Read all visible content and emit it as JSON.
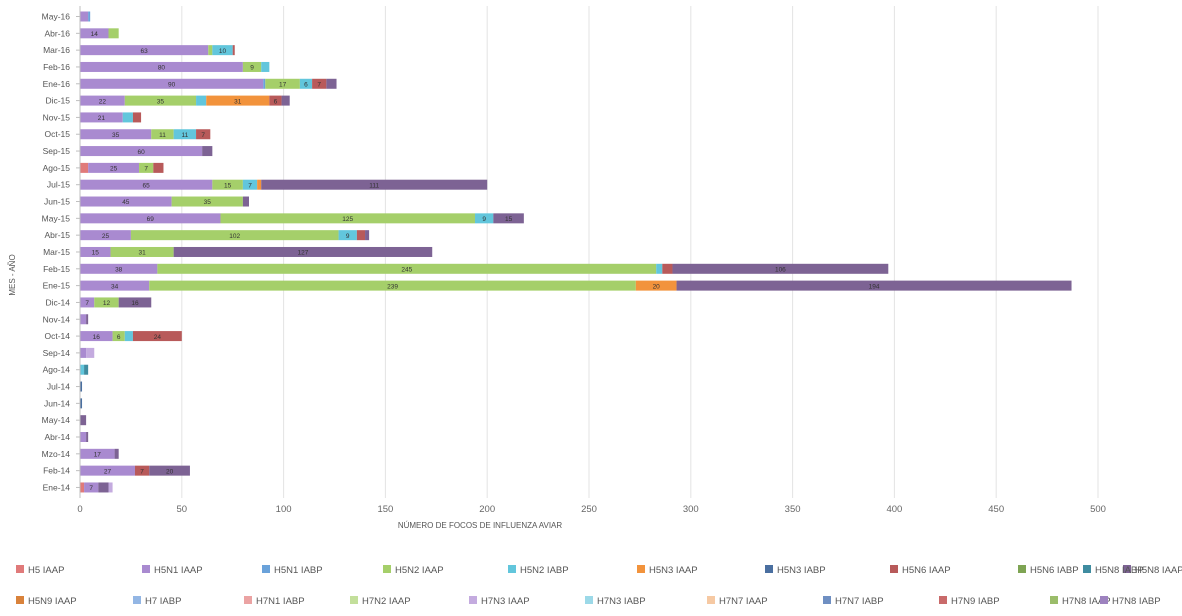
{
  "chart_data": {
    "type": "bar",
    "orientation": "horizontal",
    "stacked": true,
    "xlabel": "NÚMERO DE FOCOS DE INFLUENZA AVIAR",
    "ylabel": "MES - AÑO",
    "xlim": [
      0,
      500
    ],
    "xticks": [
      0,
      50,
      100,
      150,
      200,
      250,
      300,
      350,
      400,
      450,
      500
    ],
    "grid": "vertical",
    "legend_position": "bottom",
    "categories": [
      "May-16",
      "Abr-16",
      "Mar-16",
      "Feb-16",
      "Ene-16",
      "Dic-15",
      "Nov-15",
      "Oct-15",
      "Sep-15",
      "Ago-15",
      "Jul-15",
      "Jun-15",
      "May-15",
      "Abr-15",
      "Mar-15",
      "Feb-15",
      "Ene-15",
      "Dic-14",
      "Nov-14",
      "Oct-14",
      "Sep-14",
      "Ago-14",
      "Jul-14",
      "Jun-14",
      "May-14",
      "Abr-14",
      "Mzo-14",
      "Feb-14",
      "Ene-14"
    ],
    "series": [
      {
        "name": "H5 IAAP",
        "color": "#e07a7a",
        "values": [
          0,
          0,
          0,
          0,
          0,
          0,
          0,
          0,
          0,
          4,
          0,
          0,
          0,
          0,
          0,
          0,
          0,
          0,
          0,
          0,
          0,
          0,
          0,
          0,
          0,
          0,
          0,
          0,
          2
        ]
      },
      {
        "name": "H5N1 IAAP",
        "color": "#a98ad0",
        "values": [
          4,
          14,
          63,
          80,
          90,
          22,
          21,
          35,
          60,
          25,
          65,
          45,
          69,
          25,
          15,
          38,
          34,
          7,
          3,
          16,
          3,
          0,
          0,
          0,
          0,
          3,
          17,
          27,
          7
        ]
      },
      {
        "name": "H5N1 IABP",
        "color": "#6aa2da",
        "values": [
          1,
          0,
          0,
          0,
          1,
          0,
          0,
          0,
          0,
          0,
          0,
          0,
          0,
          0,
          0,
          0,
          0,
          0,
          0,
          0,
          0,
          0,
          0,
          0,
          0,
          0,
          0,
          0,
          0
        ]
      },
      {
        "name": "H5N2 IAAP",
        "color": "#a5cf6a",
        "values": [
          0,
          5,
          2,
          9,
          17,
          35,
          0,
          11,
          0,
          7,
          15,
          35,
          125,
          102,
          31,
          245,
          239,
          12,
          0,
          6,
          0,
          0,
          0,
          0,
          0,
          0,
          0,
          0,
          0
        ]
      },
      {
        "name": "H5N2 IABP",
        "color": "#62c6dc",
        "values": [
          0,
          0,
          10,
          4,
          6,
          5,
          5,
          11,
          0,
          0,
          7,
          0,
          9,
          9,
          0,
          3,
          0,
          0,
          0,
          4,
          0,
          2,
          0,
          0,
          0,
          0,
          0,
          0,
          0
        ]
      },
      {
        "name": "H5N3 IAAP",
        "color": "#f2933c",
        "values": [
          0,
          0,
          0,
          0,
          0,
          31,
          0,
          0,
          0,
          0,
          2,
          0,
          0,
          0,
          0,
          0,
          20,
          0,
          0,
          0,
          0,
          0,
          0,
          0,
          0,
          0,
          0,
          0,
          0
        ]
      },
      {
        "name": "H5N3 IABP",
        "color": "#4a6fa0",
        "values": [
          0,
          0,
          0,
          0,
          0,
          0,
          0,
          0,
          0,
          0,
          0,
          0,
          0,
          0,
          0,
          0,
          0,
          0,
          0,
          0,
          0,
          0,
          1,
          1,
          0,
          0,
          0,
          0,
          0
        ]
      },
      {
        "name": "H5N6 IAAP",
        "color": "#b85a5a",
        "values": [
          0,
          0,
          1,
          0,
          7,
          6,
          4,
          7,
          0,
          5,
          0,
          0,
          0,
          4,
          0,
          5,
          0,
          0,
          0,
          24,
          0,
          0,
          0,
          0,
          0,
          0,
          0,
          7,
          0
        ]
      },
      {
        "name": "H5N6 IABP",
        "color": "#7ea453",
        "values": [
          0,
          0,
          0,
          0,
          0,
          0,
          0,
          0,
          0,
          0,
          0,
          0,
          0,
          0,
          0,
          0,
          0,
          0,
          0,
          0,
          0,
          0,
          0,
          0,
          0,
          0,
          0,
          0,
          0
        ]
      },
      {
        "name": "H5N8 IAAP",
        "color": "#7d6394",
        "values": [
          0,
          0,
          0,
          0,
          5,
          4,
          0,
          0,
          5,
          0,
          111,
          3,
          15,
          2,
          127,
          106,
          194,
          16,
          1,
          0,
          0,
          0,
          0,
          0,
          3,
          1,
          2,
          20,
          5
        ]
      },
      {
        "name": "H5N8 IABP",
        "color": "#3f8ca0",
        "values": [
          0,
          0,
          0,
          0,
          0,
          0,
          0,
          0,
          0,
          0,
          0,
          0,
          0,
          0,
          0,
          0,
          0,
          0,
          0,
          0,
          0,
          2,
          0,
          0,
          0,
          0,
          0,
          0,
          0
        ]
      },
      {
        "name": "H5N9 IAAP",
        "color": "#d9823b",
        "values": [
          0,
          0,
          0,
          0,
          0,
          0,
          0,
          0,
          0,
          0,
          0,
          0,
          0,
          0,
          0,
          0,
          0,
          0,
          0,
          0,
          0,
          0,
          0,
          0,
          0,
          0,
          0,
          0,
          0
        ]
      },
      {
        "name": "H7 IABP",
        "color": "#93b6e4",
        "values": [
          0,
          0,
          0,
          0,
          0,
          0,
          0,
          0,
          0,
          0,
          0,
          0,
          0,
          0,
          0,
          0,
          0,
          0,
          0,
          0,
          0,
          0,
          0,
          0,
          0,
          0,
          0,
          0,
          0
        ]
      },
      {
        "name": "H7N1 IABP",
        "color": "#eba3a3",
        "values": [
          0,
          0,
          0,
          0,
          0,
          0,
          0,
          0,
          0,
          0,
          0,
          0,
          0,
          0,
          0,
          0,
          0,
          0,
          0,
          0,
          0,
          0,
          0,
          0,
          0,
          0,
          0,
          0,
          0
        ]
      },
      {
        "name": "H7N2 IAAP",
        "color": "#c3df9b",
        "values": [
          0,
          0,
          0,
          0,
          0,
          0,
          0,
          0,
          0,
          0,
          0,
          0,
          0,
          0,
          0,
          0,
          0,
          0,
          0,
          0,
          0,
          0,
          0,
          0,
          0,
          0,
          0,
          0,
          0
        ]
      },
      {
        "name": "H7N3 IAAP",
        "color": "#c4abdf",
        "values": [
          0,
          0,
          0,
          0,
          0,
          0,
          0,
          0,
          0,
          0,
          0,
          0,
          0,
          0,
          0,
          0,
          0,
          0,
          0,
          0,
          4,
          0,
          0,
          0,
          0,
          0,
          0,
          0,
          2
        ]
      },
      {
        "name": "H7N3 IABP",
        "color": "#9cd9e8",
        "values": [
          0,
          0,
          0,
          0,
          0,
          0,
          0,
          0,
          0,
          0,
          0,
          0,
          0,
          0,
          0,
          0,
          0,
          0,
          0,
          0,
          0,
          0,
          0,
          0,
          0,
          0,
          0,
          0,
          0
        ]
      },
      {
        "name": "H7N7 IAAP",
        "color": "#f6c9a3",
        "values": [
          0,
          0,
          0,
          0,
          0,
          0,
          0,
          0,
          0,
          0,
          0,
          0,
          0,
          0,
          0,
          0,
          0,
          0,
          0,
          0,
          0,
          0,
          0,
          0,
          0,
          0,
          0,
          0,
          0
        ]
      },
      {
        "name": "H7N7 IABP",
        "color": "#6f8fc2",
        "values": [
          0,
          0,
          0,
          0,
          0,
          0,
          0,
          0,
          0,
          0,
          0,
          0,
          0,
          0,
          0,
          0,
          0,
          0,
          0,
          0,
          0,
          0,
          0,
          0,
          0,
          0,
          0,
          0,
          0
        ]
      },
      {
        "name": "H7N9 IABP",
        "color": "#c96a6a",
        "values": [
          0,
          0,
          0,
          0,
          0,
          0,
          0,
          0,
          0,
          0,
          0,
          0,
          0,
          0,
          0,
          0,
          0,
          0,
          0,
          0,
          0,
          0,
          0,
          0,
          0,
          0,
          0,
          0,
          0
        ]
      },
      {
        "name": "H7N8 IAAP",
        "color": "#9bbd6a",
        "values": [
          0,
          0,
          0,
          0,
          0,
          0,
          0,
          0,
          0,
          0,
          0,
          0,
          0,
          0,
          0,
          0,
          0,
          0,
          0,
          0,
          0,
          0,
          0,
          0,
          0,
          0,
          0,
          0,
          0
        ]
      },
      {
        "name": "H7N8 IABP",
        "color": "#9d82bf",
        "values": [
          0,
          0,
          0,
          0,
          0,
          0,
          0,
          0,
          0,
          0,
          0,
          0,
          0,
          0,
          0,
          0,
          0,
          0,
          0,
          0,
          0,
          0,
          0,
          0,
          0,
          0,
          0,
          0,
          0
        ]
      }
    ],
    "label_min": 6
  }
}
